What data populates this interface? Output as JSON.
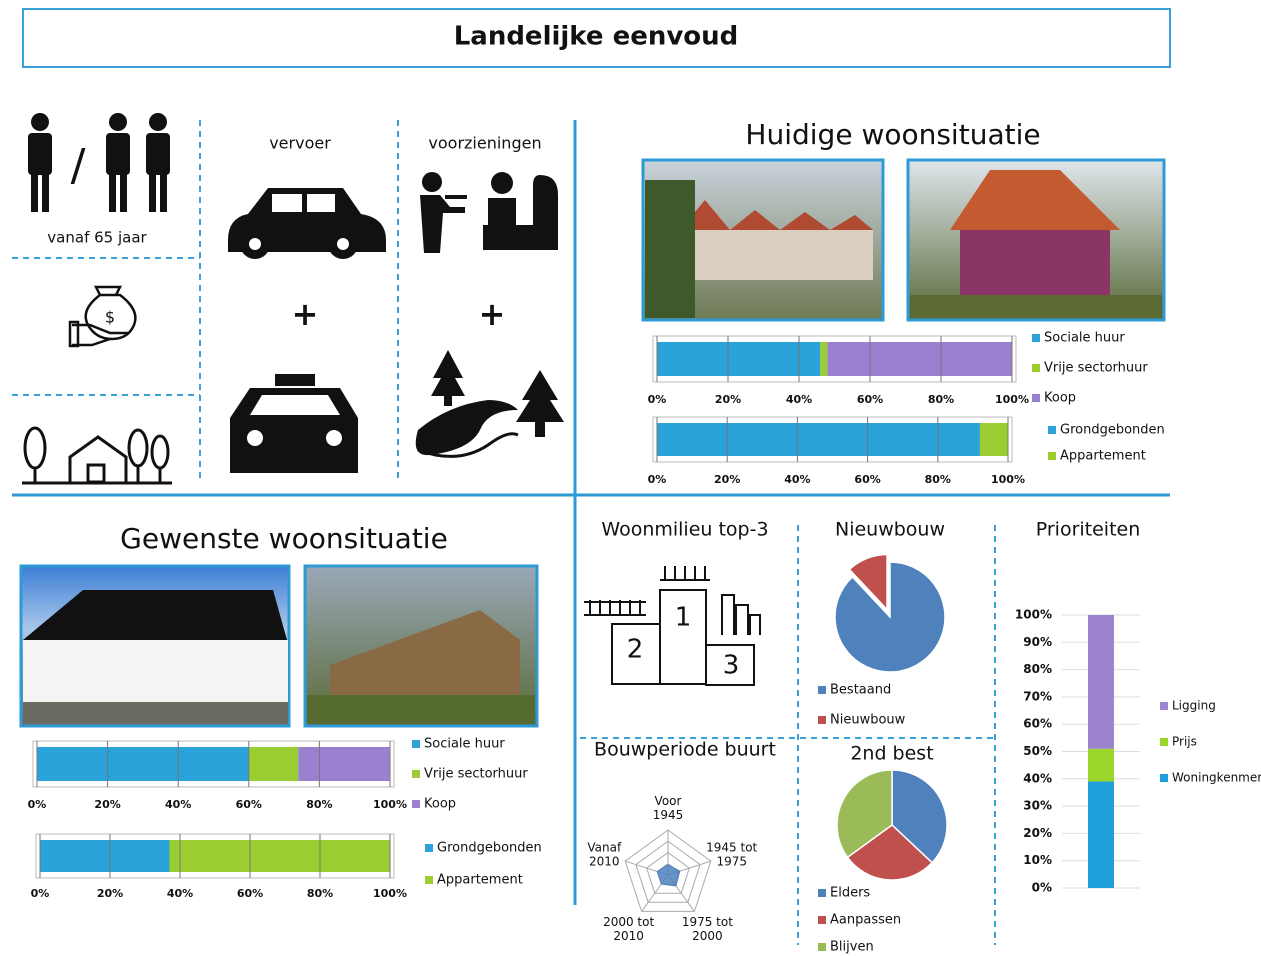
{
  "title": "Landelijke eenvoud",
  "profile": {
    "slash": "/",
    "age": "vanaf 65 jaar"
  },
  "vervoer": {
    "label": "vervoer",
    "plus": "+"
  },
  "voorzieningen": {
    "label": "voorzieningen",
    "plus": "+"
  },
  "sections": {
    "current": "Huidige woonsituatie",
    "desired": "Gewenste woonsituatie"
  },
  "podium": {
    "title": "Woonmilieu top-3",
    "places": [
      "1",
      "2",
      "3"
    ]
  },
  "chart_data": [
    {
      "type": "hstack",
      "series": [
        {
          "name": "Sociale huur",
          "color": "#2aa2da",
          "values": [
            46
          ]
        },
        {
          "name": "Vrije sectorhuur",
          "color": "#9acd32",
          "values": [
            2
          ]
        },
        {
          "name": "Koop",
          "color": "#9b80d0",
          "values": [
            52
          ]
        }
      ],
      "xlim": [
        0,
        100
      ],
      "xticks": [
        {
          "value": 0,
          "label": "0%"
        },
        {
          "value": 20,
          "label": "20%"
        },
        {
          "value": 40,
          "label": "40%"
        },
        {
          "value": 60,
          "label": "60%"
        },
        {
          "value": 80,
          "label": "80%"
        },
        {
          "value": 100,
          "label": "100%"
        }
      ],
      "grid": true
    },
    {
      "type": "hstack",
      "series": [
        {
          "name": "Grondgebonden",
          "color": "#2aa2da",
          "values": [
            92
          ]
        },
        {
          "name": "Appartement",
          "color": "#9acd32",
          "values": [
            8
          ]
        }
      ],
      "xlim": [
        0,
        100
      ],
      "xticks": [
        {
          "value": 0,
          "label": "0%"
        },
        {
          "value": 20,
          "label": "20%"
        },
        {
          "value": 40,
          "label": "40%"
        },
        {
          "value": 60,
          "label": "60%"
        },
        {
          "value": 80,
          "label": "80%"
        },
        {
          "value": 100,
          "label": "100%"
        }
      ],
      "grid": true
    },
    {
      "type": "hstack",
      "series": [
        {
          "name": "Sociale huur",
          "color": "#2aa2da",
          "values": [
            60
          ]
        },
        {
          "name": "Vrije sectorhuur",
          "color": "#9acd32",
          "values": [
            14
          ]
        },
        {
          "name": "Koop",
          "color": "#9b80d0",
          "values": [
            26
          ]
        }
      ],
      "xlim": [
        0,
        100
      ],
      "xticks": [
        {
          "value": 0,
          "label": "0%"
        },
        {
          "value": 20,
          "label": "20%"
        },
        {
          "value": 40,
          "label": "40%"
        },
        {
          "value": 60,
          "label": "60%"
        },
        {
          "value": 80,
          "label": "80%"
        },
        {
          "value": 100,
          "label": "100%"
        }
      ],
      "grid": true
    },
    {
      "type": "hstack",
      "series": [
        {
          "name": "Grondgebonden",
          "color": "#2aa2da",
          "values": [
            37
          ]
        },
        {
          "name": "Appartement",
          "color": "#9acd32",
          "values": [
            63
          ]
        }
      ],
      "xlim": [
        0,
        100
      ],
      "xticks": [
        {
          "value": 0,
          "label": "0%"
        },
        {
          "value": 20,
          "label": "20%"
        },
        {
          "value": 40,
          "label": "40%"
        },
        {
          "value": 60,
          "label": "60%"
        },
        {
          "value": 80,
          "label": "80%"
        },
        {
          "value": 100,
          "label": "100%"
        }
      ],
      "grid": true
    },
    {
      "type": "pie",
      "title": "Nieuwbouw",
      "categories": [
        "Bestaand",
        "Nieuwbouw"
      ],
      "values": [
        88,
        12
      ],
      "colors": [
        "#4f81bd",
        "#c0504d"
      ]
    },
    {
      "type": "pie",
      "title": "2nd best",
      "categories": [
        "Elders",
        "Aanpassen",
        "Blijven"
      ],
      "values": [
        37,
        28,
        35
      ],
      "colors": [
        "#4f81bd",
        "#c0504d",
        "#9bbb59"
      ]
    },
    {
      "type": "column",
      "title": "Prioriteiten",
      "series": [
        {
          "name": "Woningkenmerken",
          "color": "#1fa0dd",
          "values": [
            39
          ]
        },
        {
          "name": "Prijs",
          "color": "#9ad72a",
          "values": [
            12
          ]
        },
        {
          "name": "Ligging",
          "color": "#9c84cf",
          "values": [
            49
          ]
        }
      ],
      "ylim": [
        0,
        100
      ],
      "yticks": [
        {
          "value": 0,
          "label": "0%"
        },
        {
          "value": 10,
          "label": "10%"
        },
        {
          "value": 20,
          "label": "20%"
        },
        {
          "value": 30,
          "label": "30%"
        },
        {
          "value": 40,
          "label": "40%"
        },
        {
          "value": 50,
          "label": "50%"
        },
        {
          "value": 60,
          "label": "60%"
        },
        {
          "value": 70,
          "label": "70%"
        },
        {
          "value": 80,
          "label": "80%"
        },
        {
          "value": 90,
          "label": "90%"
        },
        {
          "value": 100,
          "label": "100%"
        }
      ],
      "grid": true
    },
    {
      "type": "radar",
      "title": "Bouwperiode buurt",
      "categories": [
        "Voor 1945",
        "1945 tot 1975",
        "1975 tot 2000",
        "2000 tot 2010",
        "Vanaf 2010"
      ],
      "values": [
        9,
        11,
        12,
        10,
        10
      ],
      "rlim": [
        0,
        40
      ],
      "color": "#4f81bd"
    }
  ]
}
